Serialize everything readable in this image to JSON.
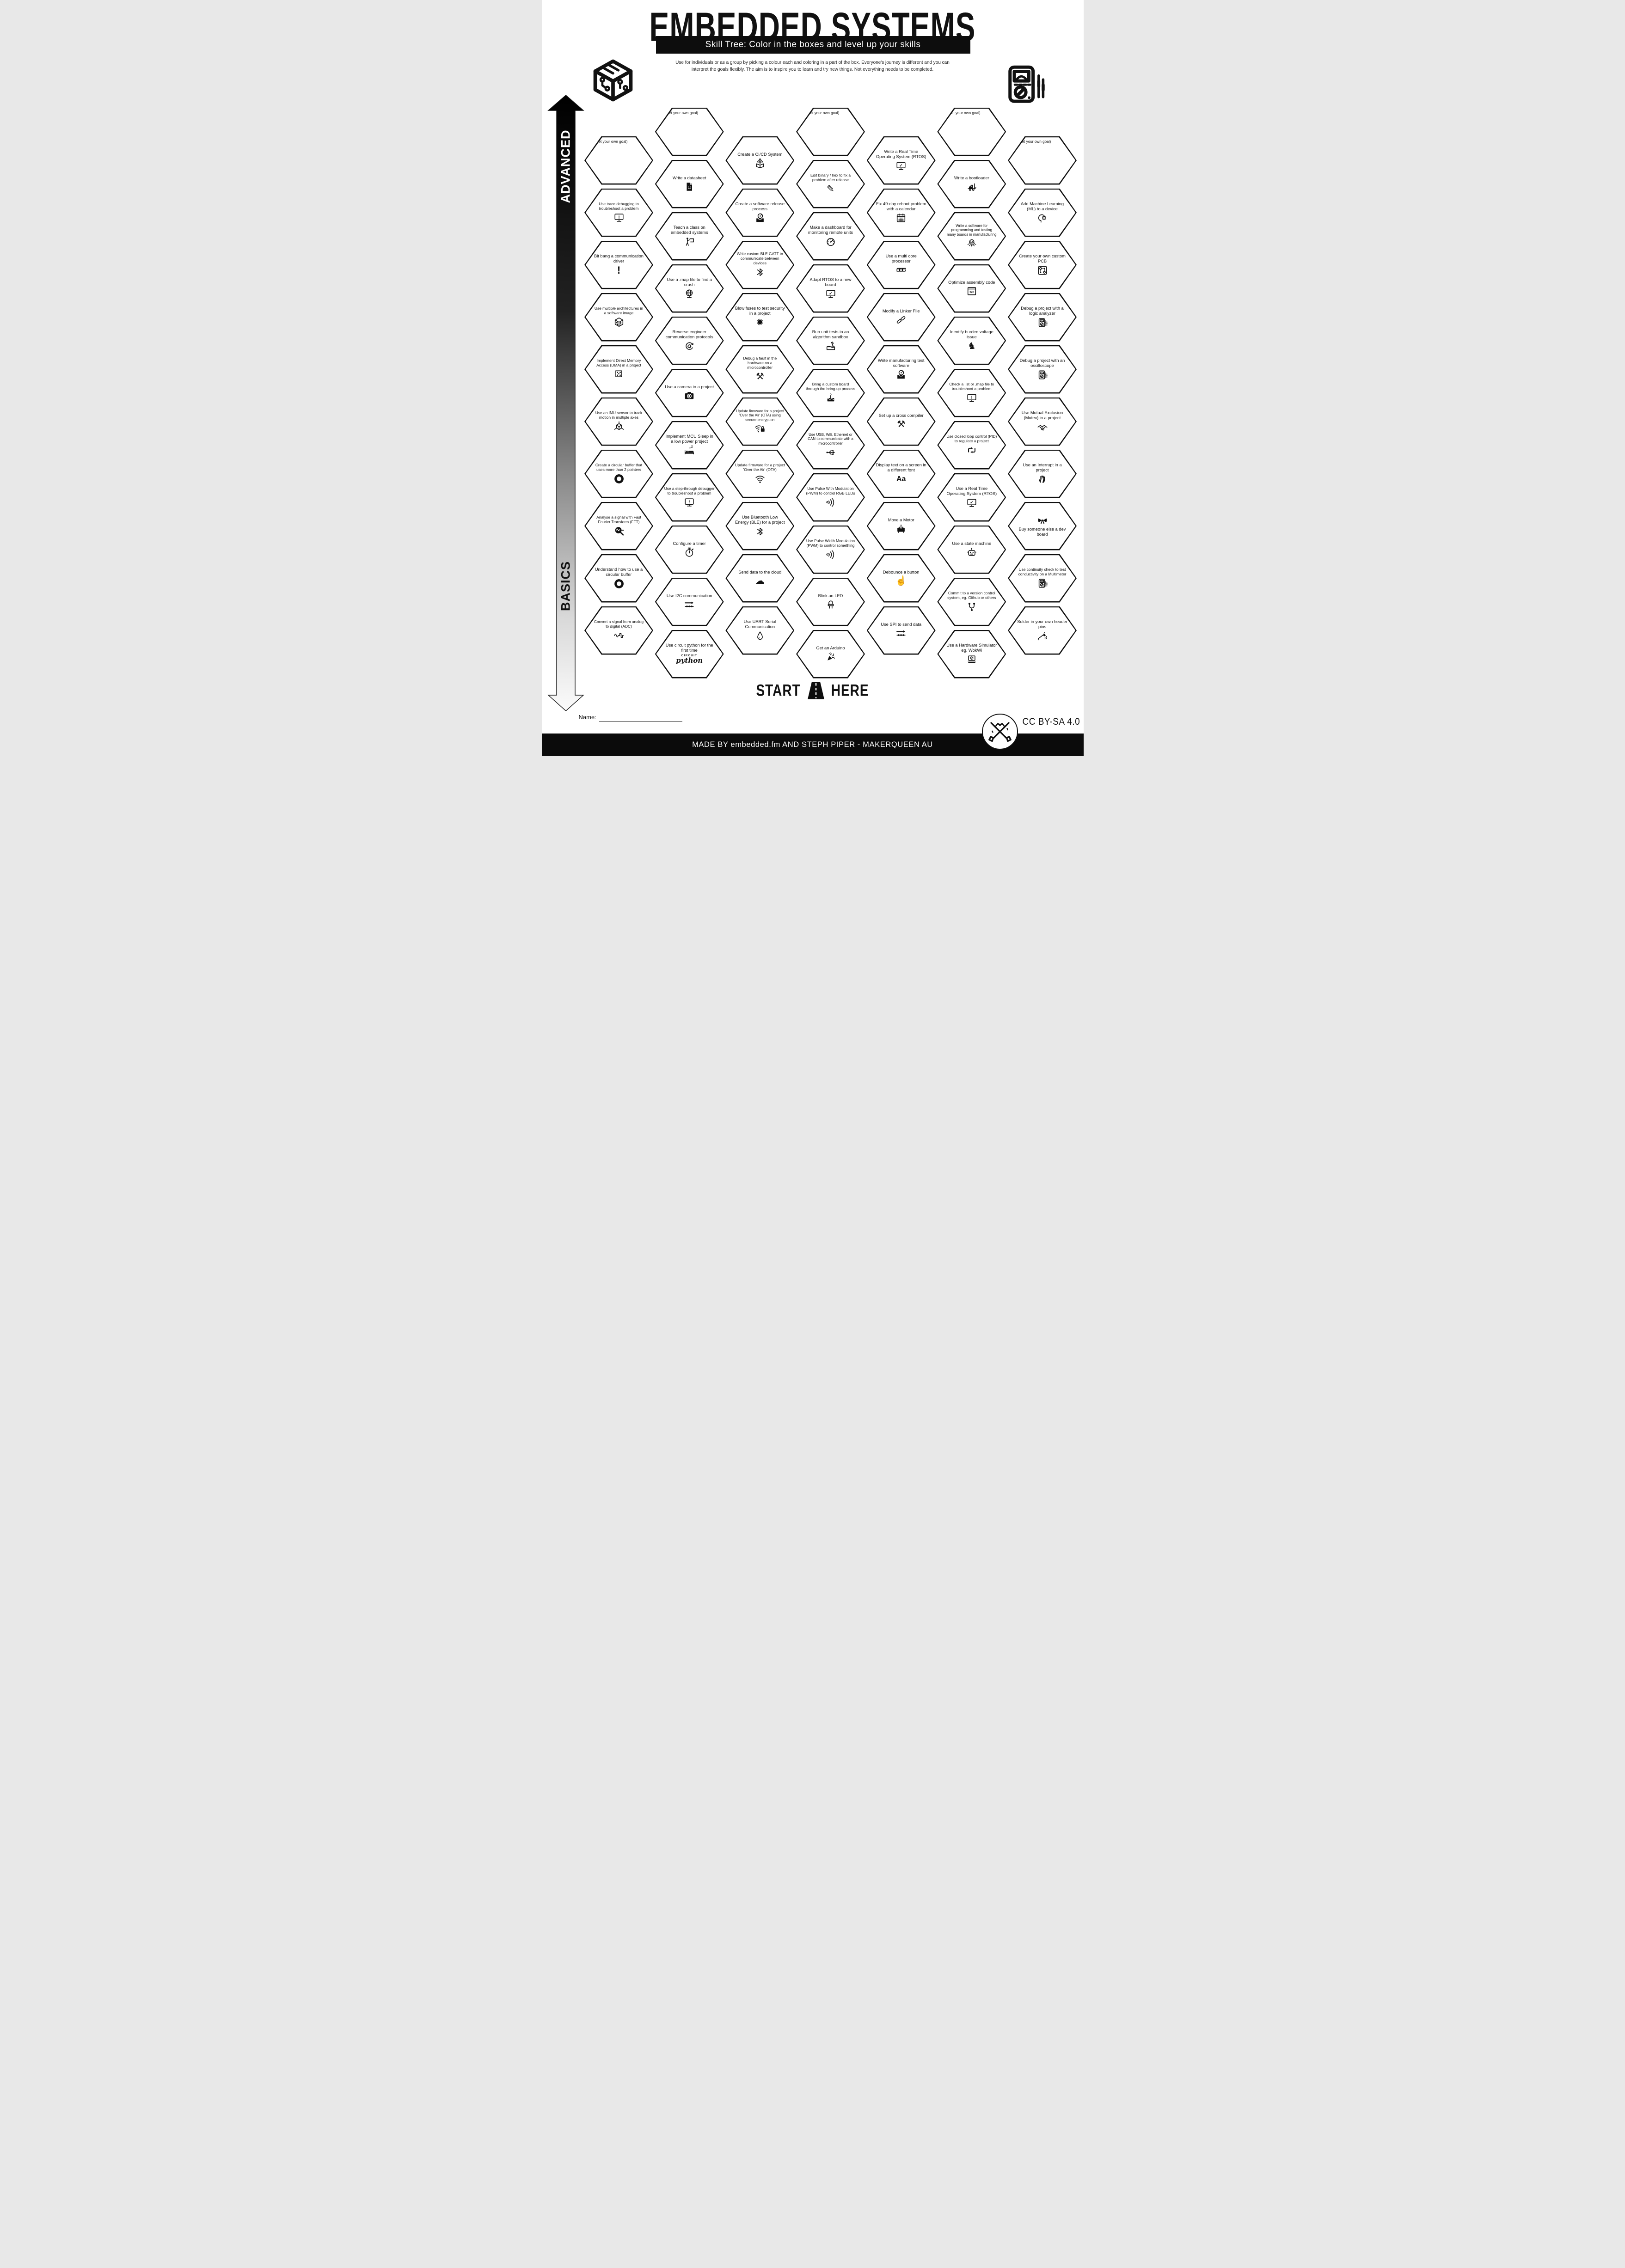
{
  "header": {
    "title": "EMBEDDED SYSTEMS",
    "subtitle": "Skill Tree:  Color in the boxes and level up your skills",
    "description_line1": "Use for individuals or as a group by picking a colour each and coloring in a part of the box.  Everyone's journey is different and you can",
    "description_line2": "interpret the goals flexibly.  The aim is to inspire you to learn and try new things. Not everything needs to be completed."
  },
  "axis": {
    "advanced": "ADVANCED",
    "basics": "BASICS"
  },
  "start_here": {
    "start": "START",
    "here": "HERE"
  },
  "name_label": "Name:",
  "license": "CC BY-SA 4.0",
  "footer": "MADE BY embedded.fm AND STEPH PIPER  -  MAKERQUEEN AU",
  "circuitpython_logo": {
    "top": "CIRCUIT",
    "bottom": "python"
  },
  "colors": {
    "ink": "#111111",
    "paper": "#ffffff"
  },
  "columns": [
    {
      "cells": [
        {
          "label": "(set your own goal)",
          "goal": true
        },
        {
          "label": "Use trace debugging to troubleshoot a problem",
          "icon": "monitor-exclaim"
        },
        {
          "label": "Bit bang a communication driver",
          "icon": "exclamation"
        },
        {
          "label": "Use multiple architectures in a software image",
          "icon": "circuit-cube"
        },
        {
          "label": "Implement Direct Memory Access (DMA) in a project",
          "icon": "dice"
        },
        {
          "label": "Use an IMU sensor to track motion in multiple axes",
          "icon": "cube-axes"
        },
        {
          "label": "Create a circular buffer that uses more than 2 pointers",
          "icon": "ring"
        },
        {
          "label": "Analyse a signal with Fast Fourier Transform (FFT)",
          "icon": "magnifier-wave"
        },
        {
          "label": "Understand how to use a circular buffer",
          "icon": "ring"
        },
        {
          "label": "Convert a signal from analog to digital (ADC)",
          "icon": "wave-square"
        }
      ]
    },
    {
      "cells": [
        {
          "label": "(set your own goal)",
          "goal": true
        },
        {
          "label": "Write a datasheet",
          "icon": "file-smiley"
        },
        {
          "label": "Teach a class on embedded systems",
          "icon": "person-board"
        },
        {
          "label": "Use a .map file to find a crash",
          "icon": "globe"
        },
        {
          "label": "Reverse engineer communication protocols",
          "icon": "gear-cycle"
        },
        {
          "label": "Use a camera in a project",
          "icon": "camera"
        },
        {
          "label": "Implement MCU Sleep in a low power project",
          "icon": "bed-z"
        },
        {
          "label": "Use a step-through debugger to troubleshoot a problem",
          "icon": "monitor-exclaim"
        },
        {
          "label": "Configure a timer",
          "icon": "stopwatch"
        },
        {
          "label": "Use I2C communication",
          "icon": "bus-arrow"
        },
        {
          "label": "Use circuit python for the first time",
          "icon": "circuitpython"
        }
      ]
    },
    {
      "cells": [
        {
          "label": "Create a CI/CD System",
          "icon": "rocket-box"
        },
        {
          "label": "Create a software release process",
          "icon": "disc-box"
        },
        {
          "label": "Write custom BLE GATT to communicate between devices",
          "icon": "bluetooth"
        },
        {
          "label": "Blow fuses to test security in a project",
          "icon": "explosion"
        },
        {
          "label": "Debug a fault in the hardware on a microcontroller",
          "icon": "tools"
        },
        {
          "label": "Update firmware for a project 'Over the Air' (OTA) using secure encryption",
          "icon": "wifi-lock"
        },
        {
          "label": "Update firmware for a project 'Over the Air' (OTA)",
          "icon": "wifi"
        },
        {
          "label": "Use Bluetooth Low Energy (BLE) for a project",
          "icon": "bluetooth"
        },
        {
          "label": "Send data to the cloud",
          "icon": "cloud"
        },
        {
          "label": "Use UART Serial Communication",
          "icon": "droplet"
        }
      ]
    },
    {
      "cells": [
        {
          "label": "(set your own goal)",
          "goal": true
        },
        {
          "label": "Edit binary / hex to fix a problem after release",
          "icon": "pencil"
        },
        {
          "label": "Make a dashboard for monitoring remote units",
          "icon": "gauge"
        },
        {
          "label": "Adapt RTOS to a new board",
          "icon": "monitor-check"
        },
        {
          "label": "Run unit tests in an algorithm sandbox",
          "icon": "sandbox"
        },
        {
          "label": "Bring a custom board through the bring-up process",
          "icon": "cake"
        },
        {
          "label": "Use USB, Wifi, Ethernet or CAN to communicate with a microcontroller",
          "icon": "usb"
        },
        {
          "label": "Use Pulse With Modulation (PWM) to control RGB LEDs",
          "icon": "waves"
        },
        {
          "label": "Use Pulse Width Modulation (PWM) to control something",
          "icon": "waves"
        },
        {
          "label": "Blink an LED",
          "icon": "led"
        },
        {
          "label": "Get an Arduino",
          "icon": "confetti"
        }
      ]
    },
    {
      "cells": [
        {
          "label": "Write a Real Time Operating System (RTOS)",
          "icon": "monitor-check"
        },
        {
          "label": "Fix 49-day reboot problem with a calendar",
          "icon": "calendar"
        },
        {
          "label": "Use a multi core processor",
          "icon": "cubes3"
        },
        {
          "label": "Modify a Linker File",
          "icon": "chain"
        },
        {
          "label": "Write manufacturing test software",
          "icon": "disc-box"
        },
        {
          "label": "Set up a cross compiler",
          "icon": "tools"
        },
        {
          "label": "Display text on a screen in a different font",
          "icon": "aa-font"
        },
        {
          "label": "Move a Motor",
          "icon": "motor"
        },
        {
          "label": "Debounce a button",
          "icon": "finger"
        },
        {
          "label": "Use SPI to send data",
          "icon": "bus-arrow"
        }
      ]
    },
    {
      "cells": [
        {
          "label": "(set your own goal)",
          "goal": true
        },
        {
          "label": "Write a bootloader",
          "icon": "forklift"
        },
        {
          "label": "Write a software for programming and testing many boards in manufacturing",
          "icon": "octopus"
        },
        {
          "label": "Optimize assembly code",
          "icon": "code-window"
        },
        {
          "label": "Identify burden voltage issue",
          "icon": "donkey"
        },
        {
          "label": "Check a .lst or .map file to troubleshoot a problem",
          "icon": "monitor-exclaim"
        },
        {
          "label": "Use closed loop control (PID) to regulate a project",
          "icon": "pid"
        },
        {
          "label": "Use a Real Time Operating System (RTOS)",
          "icon": "monitor-check"
        },
        {
          "label": "Use a state machine",
          "icon": "robot"
        },
        {
          "label": "Commit to a version control system, eg. Github or others",
          "icon": "git-branch"
        },
        {
          "label": "Use a Hardware Simulator eg. WokWi",
          "icon": "laptop-cube"
        }
      ]
    },
    {
      "cells": [
        {
          "label": "(set your own goal)",
          "goal": true
        },
        {
          "label": "Add Machine Learning (ML) to a device",
          "icon": "head-gear"
        },
        {
          "label": "Create your own custom PCB",
          "icon": "pcb"
        },
        {
          "label": "Debug a project with a logic analyzer",
          "icon": "meter"
        },
        {
          "label": "Debug a project with an oscilloscope",
          "icon": "meter"
        },
        {
          "label": "Use Mutual Exclusion (Mutex) in a project",
          "icon": "handshake"
        },
        {
          "label": "Use an Interrupt in a project",
          "icon": "hand"
        },
        {
          "label": "Buy someone else a dev board",
          "icon": "bow",
          "iconFirst": true
        },
        {
          "label": "Use continuity check to test conductivity on a Multimeter",
          "icon": "meter"
        },
        {
          "label": "Solder in your own header pins",
          "icon": "solder"
        }
      ]
    }
  ]
}
